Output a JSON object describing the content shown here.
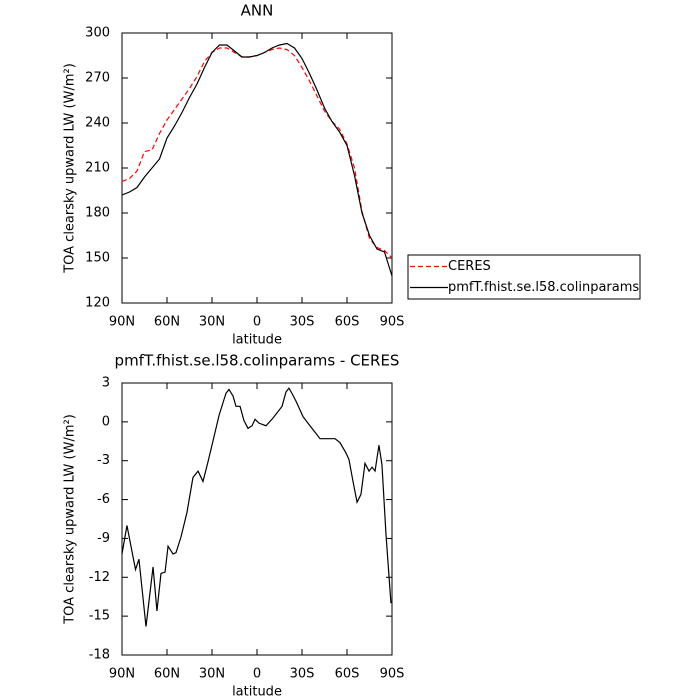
{
  "chart_data": [
    {
      "type": "line",
      "title": "ANN",
      "xlabel": "latitude",
      "ylabel": "TOA clearsky upward LW (W/m²)",
      "xlim": [
        90,
        -90
      ],
      "xticks": [
        {
          "value": 90,
          "label": "90N"
        },
        {
          "value": 60,
          "label": "60N"
        },
        {
          "value": 30,
          "label": "30N"
        },
        0,
        {
          "value": -30,
          "label": "30S"
        },
        {
          "value": -60,
          "label": "60S"
        },
        {
          "value": -90,
          "label": "90S"
        }
      ],
      "ylim": [
        120,
        300
      ],
      "yticks": [
        120,
        150,
        180,
        210,
        240,
        270,
        300
      ],
      "legend": "right",
      "x": [
        90,
        85,
        80,
        75,
        70,
        65,
        60,
        55,
        50,
        45,
        40,
        35,
        30,
        25,
        20,
        15,
        10,
        5,
        0,
        -5,
        -10,
        -15,
        -20,
        -25,
        -30,
        -35,
        -40,
        -45,
        -50,
        -55,
        -60,
        -65,
        -70,
        -75,
        -80,
        -85,
        -90
      ],
      "series": [
        {
          "name": "CERES",
          "color": "#ff0000",
          "linestyle": "dashed",
          "values": [
            201,
            203,
            208,
            221,
            222,
            233,
            242,
            249,
            256,
            263,
            271,
            281,
            287,
            290,
            290,
            287,
            284,
            284,
            285,
            287,
            289,
            290,
            289,
            285,
            277,
            268,
            258,
            248,
            241,
            236,
            226,
            210,
            181,
            163,
            157,
            155,
            150
          ]
        },
        {
          "name": "pmfT.fhist.se.l58.colinparams",
          "color": "#000000",
          "linestyle": "solid",
          "values": [
            192,
            194,
            197,
            204,
            210,
            216,
            230,
            238,
            247,
            257,
            266,
            277,
            287,
            292,
            292,
            288,
            284,
            284,
            285,
            287,
            290,
            292,
            293,
            290,
            283,
            273,
            262,
            250,
            241,
            234,
            225,
            205,
            180,
            165,
            156,
            154,
            138
          ]
        }
      ]
    },
    {
      "type": "line",
      "title": "pmfT.fhist.se.l58.colinparams - CERES",
      "xlabel": "latitude",
      "ylabel": "TOA clearsky upward LW (W/m²)",
      "xlim": [
        90,
        -90
      ],
      "xticks": [
        {
          "value": 90,
          "label": "90N"
        },
        {
          "value": 60,
          "label": "60N"
        },
        {
          "value": 30,
          "label": "30N"
        },
        0,
        {
          "value": -30,
          "label": "30S"
        },
        {
          "value": -60,
          "label": "60S"
        },
        {
          "value": -90,
          "label": "90S"
        }
      ],
      "ylim": [
        -18,
        3
      ],
      "yticks": [
        -18,
        -15,
        -12,
        -9,
        -6,
        -3,
        0,
        3
      ],
      "x": [
        90,
        86.7,
        81,
        78.7,
        74,
        69.3,
        66.7,
        64,
        61.3,
        59.3,
        56,
        54,
        50.7,
        46.7,
        42.7,
        39.3,
        36,
        32.7,
        30,
        25.3,
        20.7,
        18.7,
        16,
        14,
        11.3,
        8.7,
        6,
        3.3,
        1.3,
        -1.3,
        -6,
        -10.7,
        -16.7,
        -19.3,
        -21.3,
        -23.3,
        -26,
        -30.7,
        -35.3,
        -38.7,
        -42,
        -48,
        -52,
        -55.3,
        -59.3,
        -61.3,
        -64,
        -66.7,
        -69.3,
        -72,
        -74.7,
        -76.7,
        -78.7,
        -81.3,
        -83.3,
        -86,
        -89.3
      ],
      "series": [
        {
          "name": "pmfT.fhist.se.l58.colinparams - CERES",
          "color": "#000000",
          "linestyle": "solid",
          "values": [
            -10.2,
            -8,
            -11.4,
            -10.6,
            -15.8,
            -11.2,
            -14.6,
            -11.7,
            -11.6,
            -9.6,
            -10.2,
            -10.1,
            -8.9,
            -7,
            -4.3,
            -3.8,
            -4.6,
            -3.1,
            -1.8,
            0.5,
            2.2,
            2.5,
            2,
            1.2,
            1.2,
            0.1,
            -0.5,
            -0.3,
            0.2,
            -0.1,
            -0.3,
            0.3,
            1.2,
            2.3,
            2.6,
            2.2,
            1.6,
            0.4,
            -0.3,
            -0.8,
            -1.3,
            -1.3,
            -1.3,
            -1.6,
            -2.4,
            -2.9,
            -4.6,
            -6.2,
            -5.6,
            -3.2,
            -3.8,
            -3.5,
            -3.8,
            -1.8,
            -3.3,
            -8.7,
            -14
          ]
        }
      ]
    }
  ]
}
